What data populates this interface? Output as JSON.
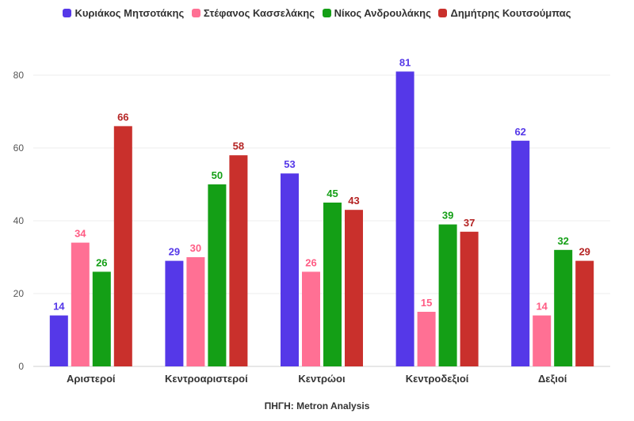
{
  "chart_data": {
    "type": "bar",
    "title": "",
    "xlabel": "",
    "ylabel": "",
    "ylim": [
      0,
      90
    ],
    "yticks": [
      0,
      20,
      40,
      60,
      80
    ],
    "grid": true,
    "legend_position": "top-center",
    "categories": [
      "Αριστεροί",
      "Κεντροαριστεροί",
      "Κεντρώοι",
      "Κεντροδεξιοί",
      "Δεξιοί"
    ],
    "series": [
      {
        "name": "Κυριάκος Μητσοτάκης",
        "color": "#5538e8",
        "values": [
          14,
          29,
          53,
          81,
          62
        ]
      },
      {
        "name": "Στέφανος Κασσελάκης",
        "color": "#ff7094",
        "values": [
          34,
          30,
          26,
          15,
          14
        ]
      },
      {
        "name": "Νίκος Ανδρουλάκης",
        "color": "#149f16",
        "values": [
          26,
          50,
          45,
          39,
          32
        ]
      },
      {
        "name": "Δημήτρης Κουτσούμπας",
        "color": "#c9302c",
        "values": [
          66,
          58,
          43,
          37,
          29
        ]
      }
    ],
    "label_colors": [
      "#5538e8",
      "#ff5c84",
      "#149f16",
      "#b52424"
    ],
    "source": "ΠΗΓΗ: Metron Analysis"
  }
}
